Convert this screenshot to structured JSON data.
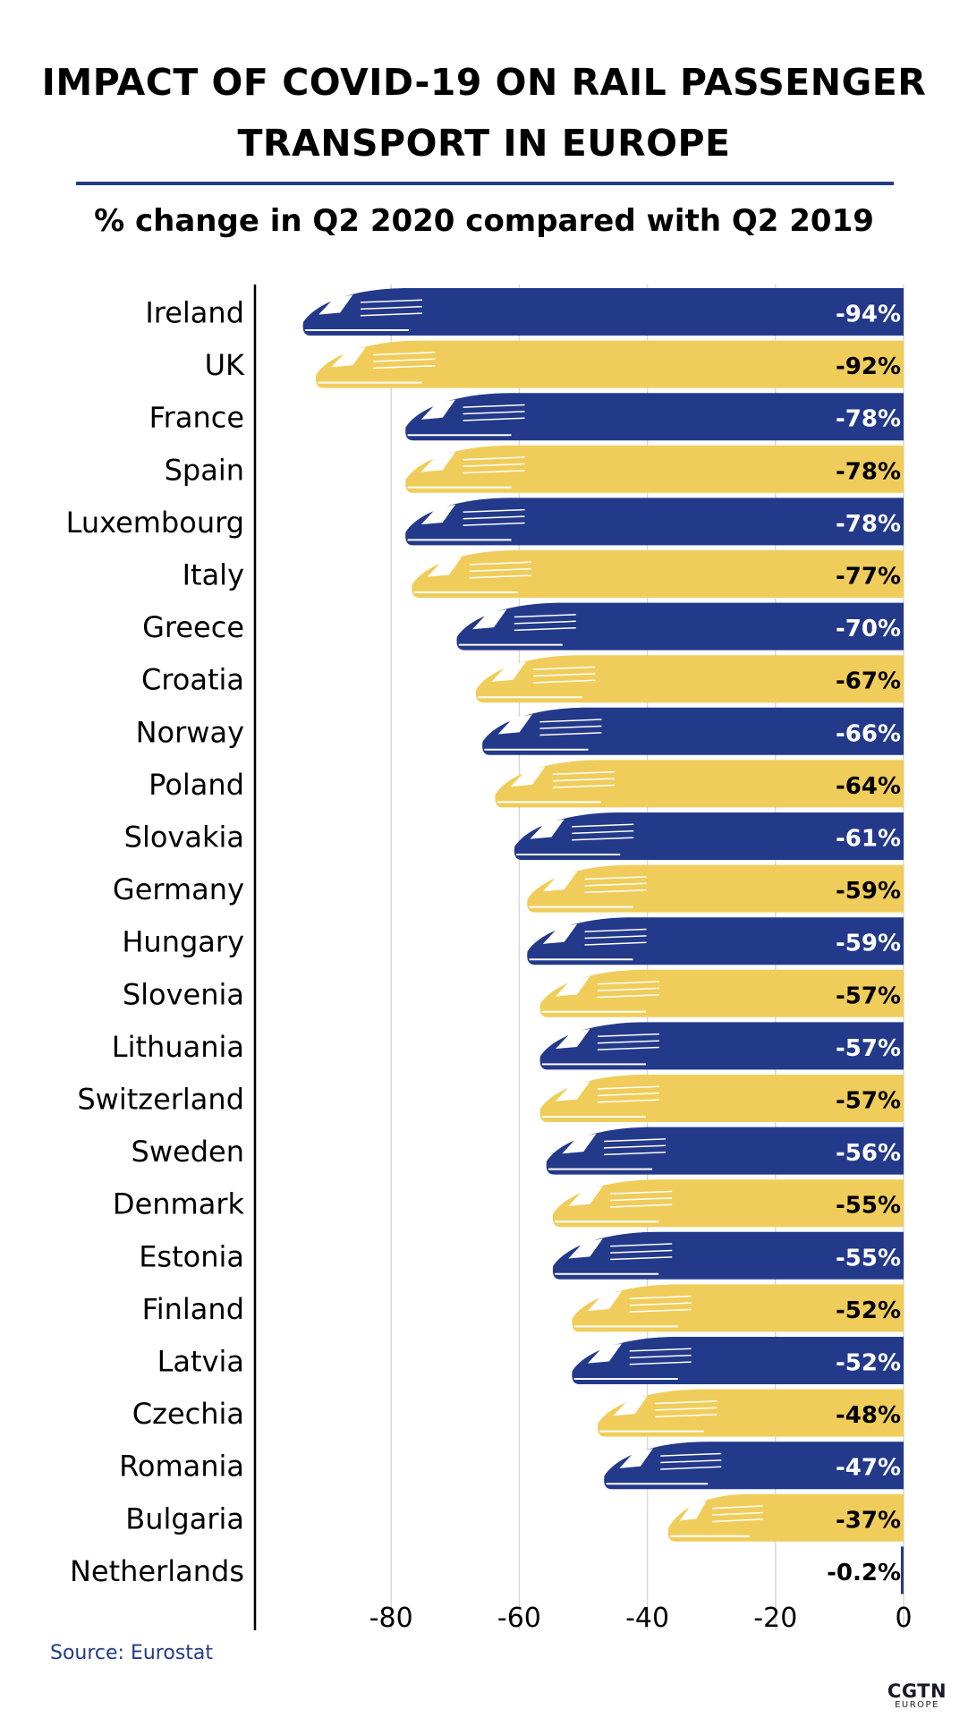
{
  "title_line1": "IMPACT OF COVID-19 ON RAIL PASSENGER",
  "title_line2": "TRANSPORT IN EUROPE",
  "subtitle": "% change in Q2 2020 compared with Q2 2019",
  "source": "Source: Eurostat",
  "logo": {
    "line1": "CGTN",
    "line2": "EUROPE"
  },
  "colors": {
    "blue": "#23398a",
    "yellow": "#f0cd5b",
    "text_dark": "#000000"
  },
  "chart_data": {
    "type": "bar",
    "orientation": "horizontal",
    "title": "IMPACT OF COVID-19 ON RAIL PASSENGER TRANSPORT IN EUROPE",
    "subtitle": "% change in Q2 2020 compared with Q2 2019",
    "xlim": [
      -100,
      0
    ],
    "xticks": [
      -80,
      -60,
      -40,
      -20,
      0
    ],
    "xtick_labels": [
      "-80",
      "-60",
      "-40",
      "-20",
      "0"
    ],
    "grid": true,
    "categories": [
      "Ireland",
      "UK",
      "France",
      "Spain",
      "Luxembourg",
      "Italy",
      "Greece",
      "Croatia",
      "Norway",
      "Poland",
      "Slovakia",
      "Germany",
      "Hungary",
      "Slovenia",
      "Lithuania",
      "Switzerland",
      "Sweden",
      "Denmark",
      "Estonia",
      "Finland",
      "Latvia",
      "Czechia",
      "Romania",
      "Bulgaria",
      "Netherlands"
    ],
    "values": [
      -94,
      -92,
      -78,
      -78,
      -78,
      -77,
      -70,
      -67,
      -66,
      -64,
      -61,
      -59,
      -59,
      -57,
      -57,
      -57,
      -56,
      -55,
      -55,
      -52,
      -52,
      -48,
      -47,
      -37,
      -0.2
    ],
    "value_labels": [
      "-94%",
      "-92%",
      "-78%",
      "-78%",
      "-78%",
      "-77%",
      "-70%",
      "-67%",
      "-66%",
      "-64%",
      "-61%",
      "-59%",
      "-59%",
      "-57%",
      "-57%",
      "-57%",
      "-56%",
      "-55%",
      "-55%",
      "-52%",
      "-52%",
      "-48%",
      "-47%",
      "-37%",
      "-0.2%"
    ]
  }
}
